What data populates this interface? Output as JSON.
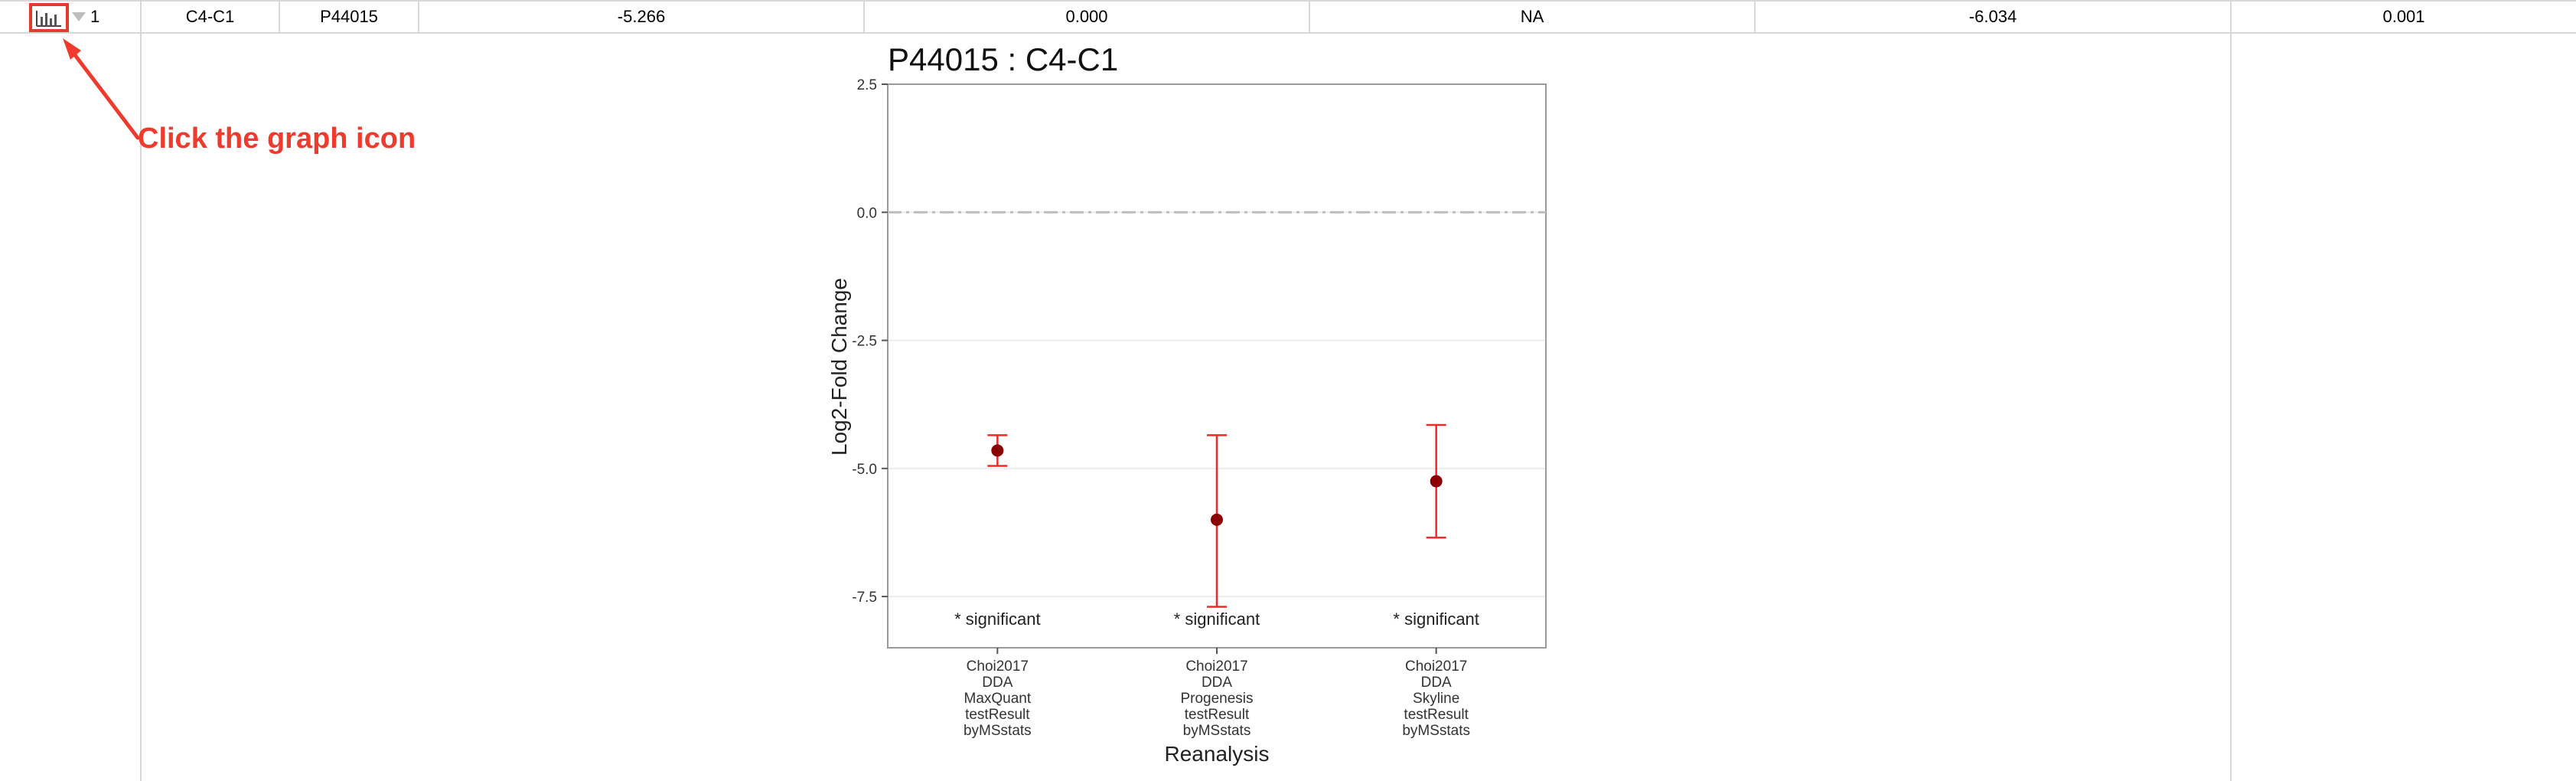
{
  "table": {
    "row_number": "1",
    "cells": [
      "C4-C1",
      "P44015",
      "-5.266",
      "0.000",
      "NA",
      "-6.034",
      "0.001"
    ]
  },
  "icons": {
    "graph": "bar-chart-icon",
    "sort": "sort-arrow-icon",
    "annotation_arrow": "arrow-icon"
  },
  "annotation": {
    "text": "Click the graph icon",
    "color": "#ee3b2d"
  },
  "chart_data": {
    "type": "scatter",
    "title": "P44015 : C4-C1",
    "xlabel": "Reanalysis",
    "ylabel": "Log2-Fold Change",
    "ylim": [
      -8.5,
      2.5
    ],
    "yticks": [
      2.5,
      0.0,
      -2.5,
      -5.0,
      -7.5
    ],
    "ytick_labels": [
      "2.5",
      "0.0",
      "-2.5",
      "-5.0",
      "-7.5"
    ],
    "grid": true,
    "reference_line": 0.0,
    "categories": [
      [
        "Choi2017",
        "DDA",
        "MaxQuant",
        "testResult",
        "byMSstats"
      ],
      [
        "Choi2017",
        "DDA",
        "Progenesis",
        "testResult",
        "byMSstats"
      ],
      [
        "Choi2017",
        "DDA",
        "Skyline",
        "testResult",
        "byMSstats"
      ]
    ],
    "points": [
      {
        "y": -4.65,
        "low": -4.95,
        "high": -4.35,
        "note": "* significant"
      },
      {
        "y": -6.0,
        "low": -7.7,
        "high": -4.35,
        "note": "* significant"
      },
      {
        "y": -5.25,
        "low": -6.35,
        "high": -4.15,
        "note": "* significant"
      }
    ],
    "colors": {
      "point": "#8b0000",
      "errorbar": "#ee2a2a",
      "reference": "#bdbdbd"
    }
  }
}
